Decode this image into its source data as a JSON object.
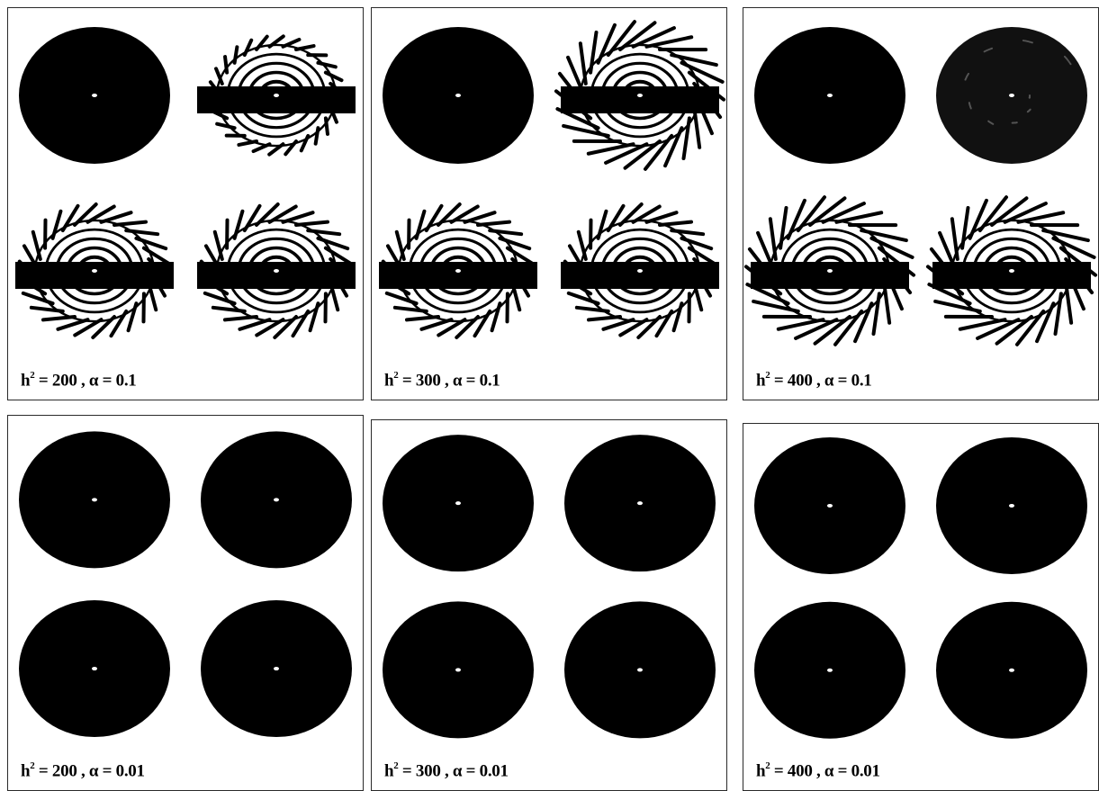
{
  "figure": {
    "panels": [
      {
        "h_squared": "200",
        "alpha": "0.1",
        "pattern": [
          "solid",
          "spiral-light",
          "spiral",
          "spiral"
        ]
      },
      {
        "h_squared": "300",
        "alpha": "0.1",
        "pattern": [
          "solid",
          "spiral-strong",
          "spiral",
          "spiral"
        ]
      },
      {
        "h_squared": "400",
        "alpha": "0.1",
        "pattern": [
          "solid",
          "dotted",
          "spiral-strong",
          "spiral-strong"
        ]
      },
      {
        "h_squared": "200",
        "alpha": "0.01",
        "pattern": [
          "solid",
          "solid",
          "solid",
          "solid"
        ]
      },
      {
        "h_squared": "300",
        "alpha": "0.01",
        "pattern": [
          "solid",
          "solid",
          "solid",
          "solid"
        ]
      },
      {
        "h_squared": "400",
        "alpha": "0.01",
        "pattern": [
          "solid",
          "solid",
          "solid",
          "solid"
        ]
      }
    ],
    "caption_prefix": "h",
    "caption_exponent": "2",
    "caption_equals": " = ",
    "caption_alpha_sep": " , α = "
  }
}
